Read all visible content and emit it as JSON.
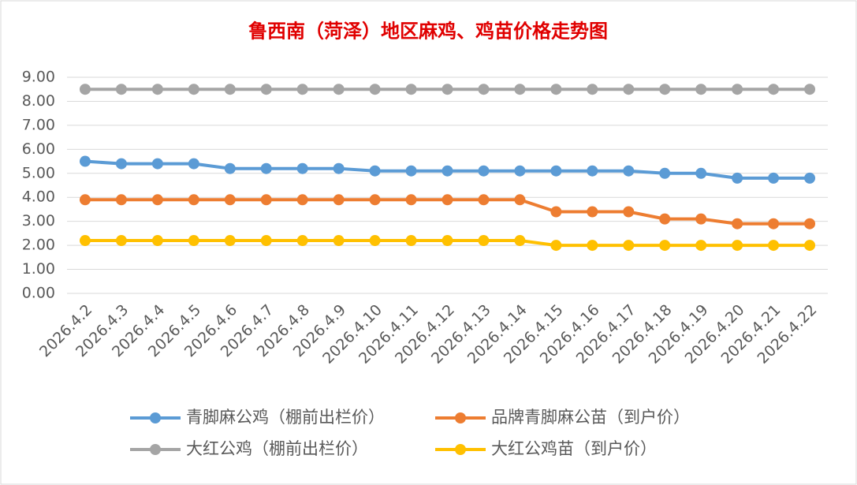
{
  "chart_data": {
    "type": "line",
    "title": "鲁西南（菏泽）地区麻鸡、鸡苗价格走势图",
    "categories": [
      "2026.4.2",
      "2026.4.3",
      "2026.4.4",
      "2026.4.5",
      "2026.4.6",
      "2026.4.7",
      "2026.4.8",
      "2026.4.9",
      "2026.4.10",
      "2026.4.11",
      "2026.4.12",
      "2026.4.13",
      "2026.4.14",
      "2026.4.15",
      "2026.4.16",
      "2026.4.17",
      "2026.4.18",
      "2026.4.19",
      "2026.4.20",
      "2026.4.21",
      "2026.4.22"
    ],
    "series": [
      {
        "name": "青脚麻公鸡（棚前出栏价）",
        "color": "#5b9bd5",
        "values": [
          5.5,
          5.4,
          5.4,
          5.4,
          5.2,
          5.2,
          5.2,
          5.2,
          5.1,
          5.1,
          5.1,
          5.1,
          5.1,
          5.1,
          5.1,
          5.1,
          5.0,
          5.0,
          4.8,
          4.8,
          4.8
        ]
      },
      {
        "name": "品牌青脚麻公苗（到户价）",
        "color": "#ed7d31",
        "values": [
          3.9,
          3.9,
          3.9,
          3.9,
          3.9,
          3.9,
          3.9,
          3.9,
          3.9,
          3.9,
          3.9,
          3.9,
          3.9,
          3.4,
          3.4,
          3.4,
          3.1,
          3.1,
          2.9,
          2.9,
          2.9
        ]
      },
      {
        "name": "大红公鸡（棚前出栏价）",
        "color": "#a5a5a5",
        "values": [
          8.5,
          8.5,
          8.5,
          8.5,
          8.5,
          8.5,
          8.5,
          8.5,
          8.5,
          8.5,
          8.5,
          8.5,
          8.5,
          8.5,
          8.5,
          8.5,
          8.5,
          8.5,
          8.5,
          8.5,
          8.5
        ]
      },
      {
        "name": "大红公鸡苗（到户价）",
        "color": "#ffc000",
        "values": [
          2.2,
          2.2,
          2.2,
          2.2,
          2.2,
          2.2,
          2.2,
          2.2,
          2.2,
          2.2,
          2.2,
          2.2,
          2.2,
          2.0,
          2.0,
          2.0,
          2.0,
          2.0,
          2.0,
          2.0,
          2.0
        ]
      }
    ],
    "ylim": [
      0,
      9
    ],
    "yticks": [
      {
        "value": 0,
        "label": "0.00"
      },
      {
        "value": 1,
        "label": "1.00"
      },
      {
        "value": 2,
        "label": "2.00"
      },
      {
        "value": 3,
        "label": "3.00"
      },
      {
        "value": 4,
        "label": "4.00"
      },
      {
        "value": 5,
        "label": "5.00"
      },
      {
        "value": 6,
        "label": "6.00"
      },
      {
        "value": 7,
        "label": "7.00"
      },
      {
        "value": 8,
        "label": "8.00"
      },
      {
        "value": 9,
        "label": "9.00"
      }
    ],
    "grid": true
  }
}
